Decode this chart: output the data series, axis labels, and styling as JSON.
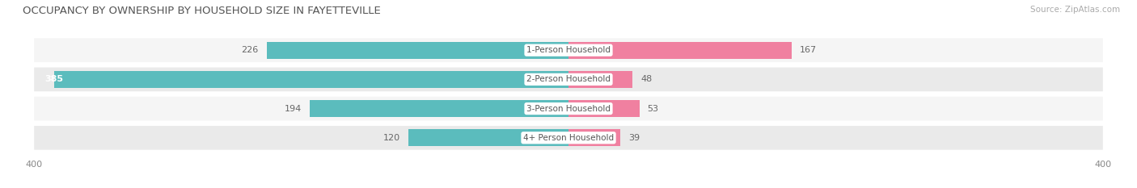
{
  "title": "OCCUPANCY BY OWNERSHIP BY HOUSEHOLD SIZE IN FAYETTEVILLE",
  "source": "Source: ZipAtlas.com",
  "categories": [
    "1-Person Household",
    "2-Person Household",
    "3-Person Household",
    "4+ Person Household"
  ],
  "owner_values": [
    226,
    385,
    194,
    120
  ],
  "renter_values": [
    167,
    48,
    53,
    39
  ],
  "owner_color": "#5bbcbd",
  "renter_color": "#f080a0",
  "label_bg_color": "#ffffff",
  "row_bg_light": "#f5f5f5",
  "row_bg_dark": "#eaeaea",
  "axis_max": 400,
  "title_fontsize": 9.5,
  "tick_fontsize": 8,
  "legend_fontsize": 8,
  "bar_value_fontsize": 8,
  "category_fontsize": 7.5,
  "source_fontsize": 7.5
}
